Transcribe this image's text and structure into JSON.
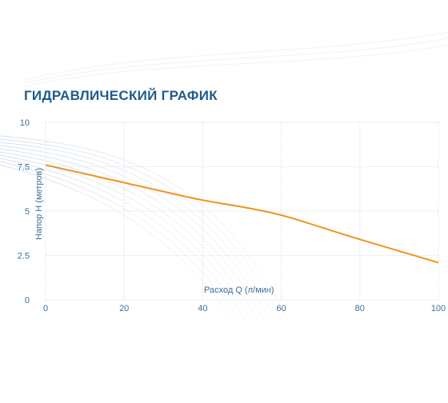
{
  "chart_data": {
    "type": "line",
    "title": "ГИДРАВЛИЧЕСКИЙ ГРАФИК",
    "xlabel": "Расход Q (л/мин)",
    "ylabel": "Напор H (метров)",
    "xlim": [
      0,
      100
    ],
    "ylim": [
      0,
      10
    ],
    "x_ticks": [
      "0",
      "20",
      "40",
      "60",
      "80",
      "100"
    ],
    "y_ticks": [
      "0",
      "2.5",
      "5",
      "7.5",
      "10"
    ],
    "grid": true,
    "series": [
      {
        "color": "#f0931e",
        "x": [
          0,
          10,
          20,
          30,
          40,
          50,
          60,
          70,
          80,
          90,
          100
        ],
        "y": [
          7.6,
          7.1,
          6.6,
          6.1,
          5.6,
          5.25,
          4.8,
          4.1,
          3.4,
          2.75,
          2.1
        ]
      }
    ]
  }
}
